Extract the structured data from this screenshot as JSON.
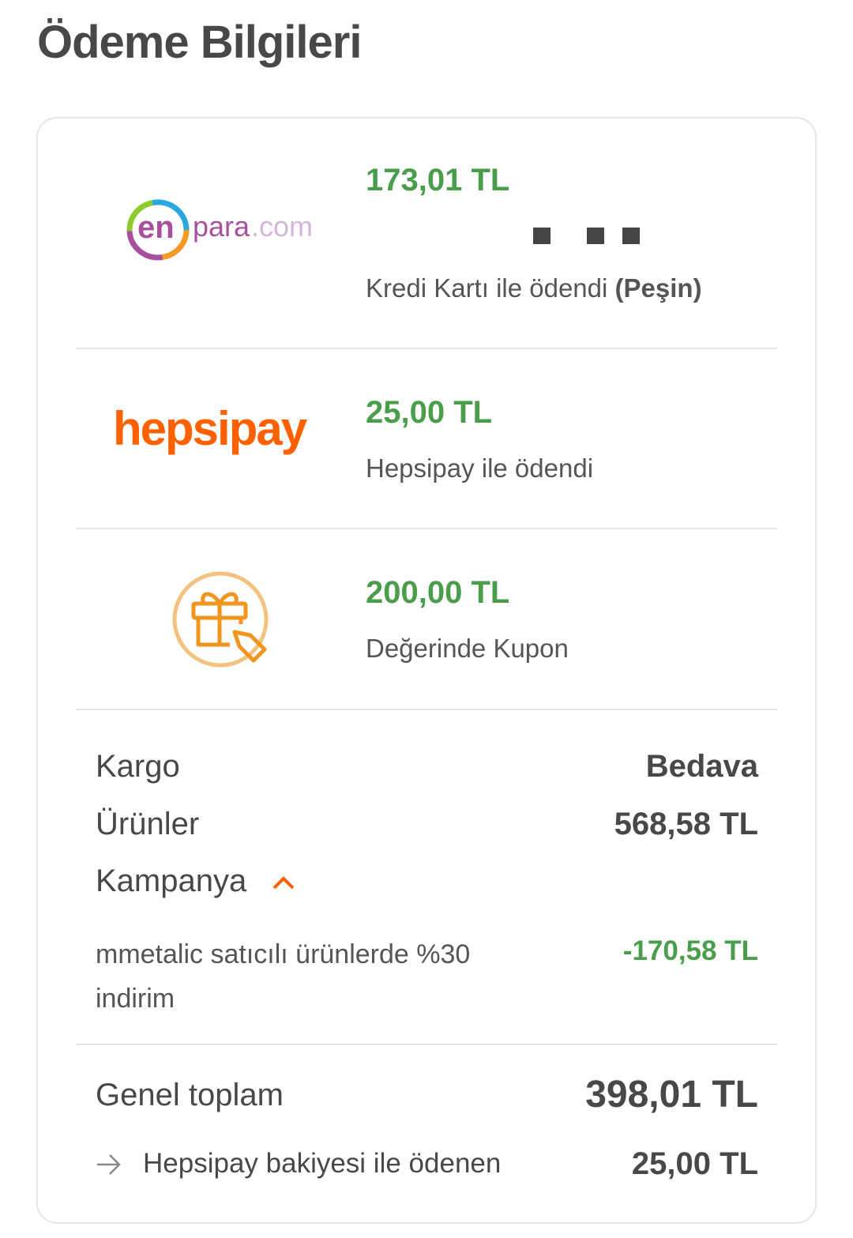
{
  "title": "Ödeme Bilgileri",
  "payments": [
    {
      "logo": "enpara.com",
      "logo_parts": {
        "en": "en",
        "para": "para",
        "com": ".com"
      },
      "amount": "173,01 TL",
      "desc": "Kredi Kartı ile ödendi",
      "desc_bold": "(Peşin)"
    },
    {
      "logo": "hepsipay",
      "amount": "25,00 TL",
      "desc": "Hepsipay ile ödendi"
    },
    {
      "icon": "gift-coupon-icon",
      "amount": "200,00 TL",
      "desc": "Değerinde Kupon"
    }
  ],
  "summary": {
    "kargo_label": "Kargo",
    "kargo_value": "Bedava",
    "urunler_label": "Ürünler",
    "urunler_value": "568,58 TL",
    "kampanya_label": "Kampanya",
    "campaign_desc": "mmetalic satıcılı ürünlerde %30 indirim",
    "campaign_value": "-170,58 TL",
    "total_label": "Genel toplam",
    "total_value": "398,01 TL",
    "hepsipay_label": "Hepsipay bakiyesi ile ödenen",
    "hepsipay_value": "25,00 TL"
  },
  "colors": {
    "green": "#4a9d4a",
    "orange": "#ff6000",
    "purple": "#7b2fd0",
    "coupon": "#f0a030"
  }
}
